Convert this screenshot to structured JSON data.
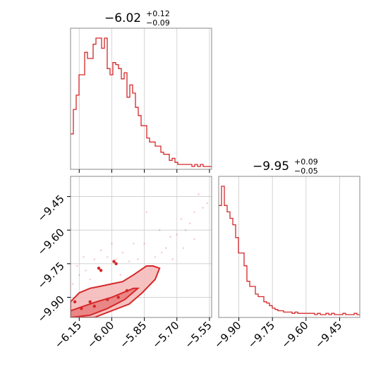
{
  "chart_data": [
    {
      "type": "histogram",
      "panel": "marginal-x",
      "title": {
        "value": "−6.02",
        "upper": "+0.12",
        "lower": "−0.09"
      },
      "xlim": [
        -6.19,
        -5.54
      ],
      "grid": true,
      "color": "#d62728",
      "bin_edges_start": -6.19,
      "bin_width": 0.013,
      "counts": [
        16,
        28,
        35,
        45,
        45,
        56,
        53,
        53,
        60,
        63,
        63,
        58,
        63,
        48,
        45,
        51,
        50,
        48,
        43,
        46,
        34,
        40,
        36,
        29,
        25,
        20,
        20,
        14,
        12,
        12,
        10,
        10,
        7,
        6,
        6,
        3,
        4,
        2,
        1,
        1,
        1,
        1,
        1,
        0,
        1,
        0,
        1,
        0,
        0,
        0
      ]
    },
    {
      "type": "histogram",
      "panel": "marginal-y",
      "title": {
        "value": "−9.95",
        "upper": "+0.09",
        "lower": "−0.05"
      },
      "xlim": [
        -9.99,
        -9.36
      ],
      "grid": true,
      "color": "#d62728",
      "bin_edges_start": -9.99,
      "bin_width": 0.0126,
      "counts": [
        85,
        100,
        85,
        80,
        75,
        70,
        60,
        48,
        48,
        38,
        26,
        22,
        22,
        16,
        14,
        14,
        10,
        9,
        7,
        5,
        4,
        3,
        3,
        2,
        2,
        2,
        1,
        2,
        1,
        1,
        1,
        1,
        1,
        1,
        0,
        1,
        0,
        0,
        1,
        0,
        1,
        0,
        0,
        0,
        1,
        0,
        0,
        0,
        1,
        0
      ]
    },
    {
      "type": "scatter",
      "panel": "joint",
      "xlim": [
        -6.19,
        -5.54
      ],
      "ylim": [
        -9.99,
        -9.36
      ],
      "grid": true,
      "color": "#d62728",
      "xticks": [
        "−6.15",
        "−6.00",
        "−5.85",
        "−5.70",
        "−5.55"
      ],
      "yticks": [
        "−9.45",
        "−9.60",
        "−9.75",
        "−9.90"
      ],
      "xtick_values": [
        -6.15,
        -6.0,
        -5.85,
        -5.7,
        -5.55
      ],
      "ytick_values": [
        -9.45,
        -9.6,
        -9.75,
        -9.9
      ],
      "mode_x": -6.1,
      "mode_y": -9.98,
      "outer_contour": [
        [
          -6.19,
          -9.92
        ],
        [
          -6.15,
          -9.88
        ],
        [
          -6.1,
          -9.86
        ],
        [
          -6.05,
          -9.85
        ],
        [
          -6.0,
          -9.84
        ],
        [
          -5.95,
          -9.83
        ],
        [
          -5.9,
          -9.8
        ],
        [
          -5.87,
          -9.78
        ],
        [
          -5.84,
          -9.76
        ],
        [
          -5.81,
          -9.76
        ],
        [
          -5.78,
          -9.77
        ],
        [
          -5.8,
          -9.82
        ],
        [
          -5.86,
          -9.88
        ],
        [
          -5.92,
          -9.93
        ],
        [
          -6.0,
          -9.96
        ],
        [
          -6.08,
          -9.99
        ],
        [
          -6.19,
          -9.99
        ]
      ],
      "inner_contour": [
        [
          -6.19,
          -9.96
        ],
        [
          -6.13,
          -9.94
        ],
        [
          -6.07,
          -9.92
        ],
        [
          -6.0,
          -9.9
        ],
        [
          -5.95,
          -9.88
        ],
        [
          -5.9,
          -9.86
        ],
        [
          -5.88,
          -9.86
        ],
        [
          -5.94,
          -9.91
        ],
        [
          -6.02,
          -9.95
        ],
        [
          -6.1,
          -9.98
        ],
        [
          -6.19,
          -9.99
        ]
      ],
      "core_points": [
        [
          -6.06,
          -9.77
        ],
        [
          -6.05,
          -9.78
        ],
        [
          -5.99,
          -9.74
        ],
        [
          -5.98,
          -9.75
        ],
        [
          -6.17,
          -9.92
        ],
        [
          -6.1,
          -9.92
        ],
        [
          -6.02,
          -9.91
        ],
        [
          -6.14,
          -9.95
        ],
        [
          -6.08,
          -9.94
        ],
        [
          -5.97,
          -9.9
        ],
        [
          -5.93,
          -9.87
        ]
      ],
      "outlier_points": [
        [
          -5.6,
          -9.44
        ],
        [
          -5.58,
          -9.5
        ],
        [
          -5.62,
          -9.52
        ],
        [
          -5.64,
          -9.57
        ],
        [
          -5.66,
          -9.6
        ],
        [
          -5.68,
          -9.55
        ],
        [
          -5.7,
          -9.62
        ],
        [
          -5.73,
          -9.63
        ],
        [
          -5.75,
          -9.68
        ],
        [
          -5.77,
          -9.7
        ],
        [
          -5.8,
          -9.72
        ],
        [
          -5.84,
          -9.52
        ],
        [
          -5.85,
          -9.66
        ],
        [
          -5.88,
          -9.73
        ],
        [
          -5.9,
          -9.66
        ],
        [
          -5.92,
          -9.74
        ],
        [
          -5.95,
          -9.7
        ],
        [
          -5.98,
          -9.73
        ],
        [
          -6.0,
          -9.66
        ],
        [
          -6.02,
          -9.72
        ],
        [
          -6.05,
          -9.69
        ],
        [
          -6.08,
          -9.73
        ],
        [
          -6.12,
          -9.78
        ],
        [
          -6.13,
          -9.72
        ],
        [
          -6.15,
          -9.8
        ],
        [
          -6.16,
          -9.76
        ],
        [
          -6.18,
          -9.84
        ],
        [
          -6.1,
          -9.82
        ],
        [
          -6.06,
          -9.86
        ],
        [
          -5.96,
          -9.8
        ],
        [
          -5.82,
          -9.78
        ],
        [
          -5.72,
          -9.73
        ],
        [
          -5.62,
          -9.64
        ],
        [
          -5.56,
          -9.48
        ],
        [
          -5.67,
          -9.68
        ],
        [
          -5.78,
          -9.6
        ]
      ]
    }
  ]
}
